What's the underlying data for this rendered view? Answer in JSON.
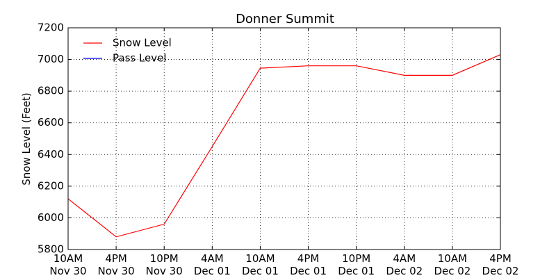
{
  "chart_data": {
    "type": "line",
    "title": "Donner Summit",
    "y_label": "Snow Level (Feet)",
    "categories": [
      [
        "10AM",
        "Nov 30"
      ],
      [
        "4PM",
        "Nov 30"
      ],
      [
        "10PM",
        "Nov 30"
      ],
      [
        "4AM",
        "Dec 01"
      ],
      [
        "10AM",
        "Dec 01"
      ],
      [
        "4PM",
        "Dec 01"
      ],
      [
        "10PM",
        "Dec 01"
      ],
      [
        "4AM",
        "Dec 02"
      ],
      [
        "10AM",
        "Dec 02"
      ],
      [
        "4PM",
        "Dec 02"
      ]
    ],
    "series": [
      {
        "name": "Snow Level",
        "color": "#ff0000",
        "values": [
          6120,
          5880,
          5960,
          6450,
          6945,
          6960,
          6960,
          6900,
          6900,
          7030
        ]
      },
      {
        "name": "Pass Level",
        "color": "#0000ff",
        "values": [
          null,
          null,
          null,
          null,
          null,
          null,
          null,
          null,
          null,
          null
        ]
      }
    ],
    "ylim": [
      5800,
      7200
    ],
    "yticks": [
      5800,
      6000,
      6200,
      6400,
      6600,
      6800,
      7000,
      7200
    ],
    "grid": true,
    "legend": "upper left"
  }
}
